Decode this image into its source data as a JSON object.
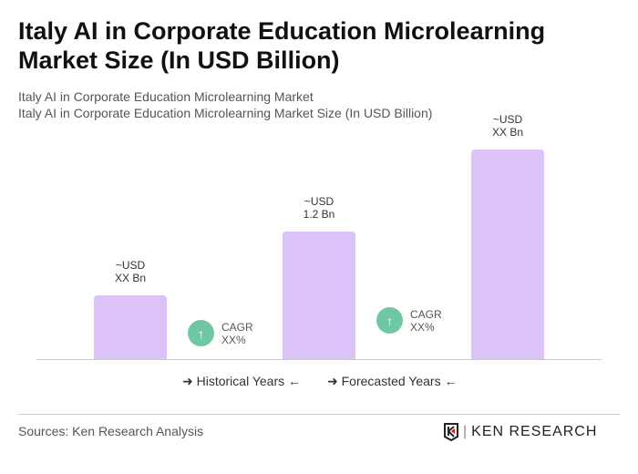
{
  "title": "Italy AI in Corporate Education Microlearning Market Size (In USD Billion)",
  "subtitle1": "Italy AI in Corporate Education Microlearning Market",
  "subtitle2": "Italy AI in Corporate Education Microlearning Market Size (In USD Billion)",
  "chart_data": {
    "type": "bar",
    "values": [
      0.6,
      1.2,
      1.97
    ],
    "labels": [
      [
        "~USD",
        "XX Bn"
      ],
      [
        "~USD",
        "1.2 Bn"
      ],
      [
        "~USD",
        "XX Bn"
      ]
    ],
    "bar_color": "#dcc3f7",
    "ylim": [
      0,
      2.1
    ],
    "grid": false
  },
  "cagr": [
    {
      "label": "CAGR",
      "value": "XX%"
    },
    {
      "label": "CAGR",
      "value": "XX%"
    }
  ],
  "cagr_color": "#6fc7a3",
  "legend": {
    "historical": "Historical Years",
    "forecasted": "Forecasted Years"
  },
  "source": "Sources: Ken Research Analysis",
  "logo": "KEN RESEARCH"
}
